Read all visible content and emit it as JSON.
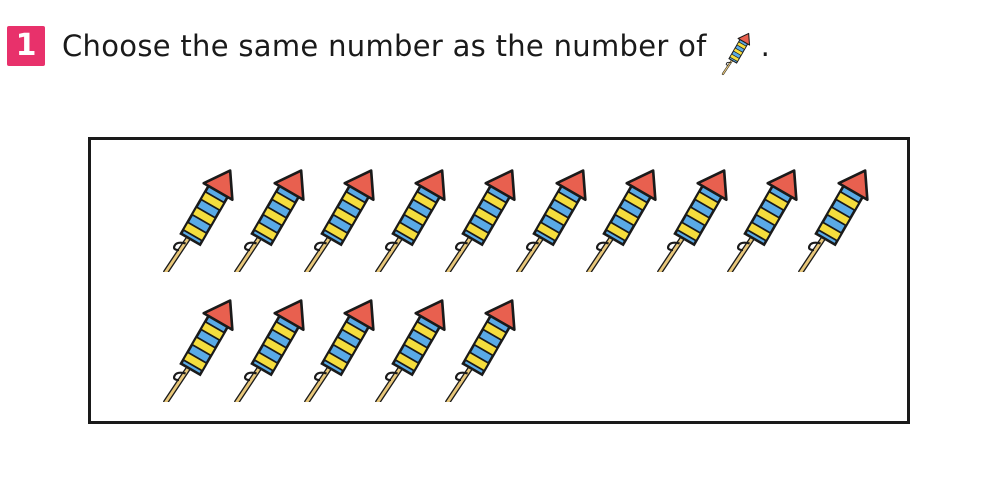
{
  "question": {
    "number": "1",
    "text": "Choose the same number as the number of",
    "end_punct": ".",
    "inline_icon": "firework-rocket-icon"
  },
  "box": {
    "item_icon": "firework-rocket-icon",
    "item_count": 15,
    "rows": [
      10,
      5
    ]
  },
  "colors": {
    "badge": "#e8316b",
    "rocket_tip": "#e8604f",
    "stripe_blue": "#5aaae6",
    "stripe_yellow": "#f5dd3d",
    "stick": "#e8c77a",
    "outline": "#1a1a1a"
  }
}
